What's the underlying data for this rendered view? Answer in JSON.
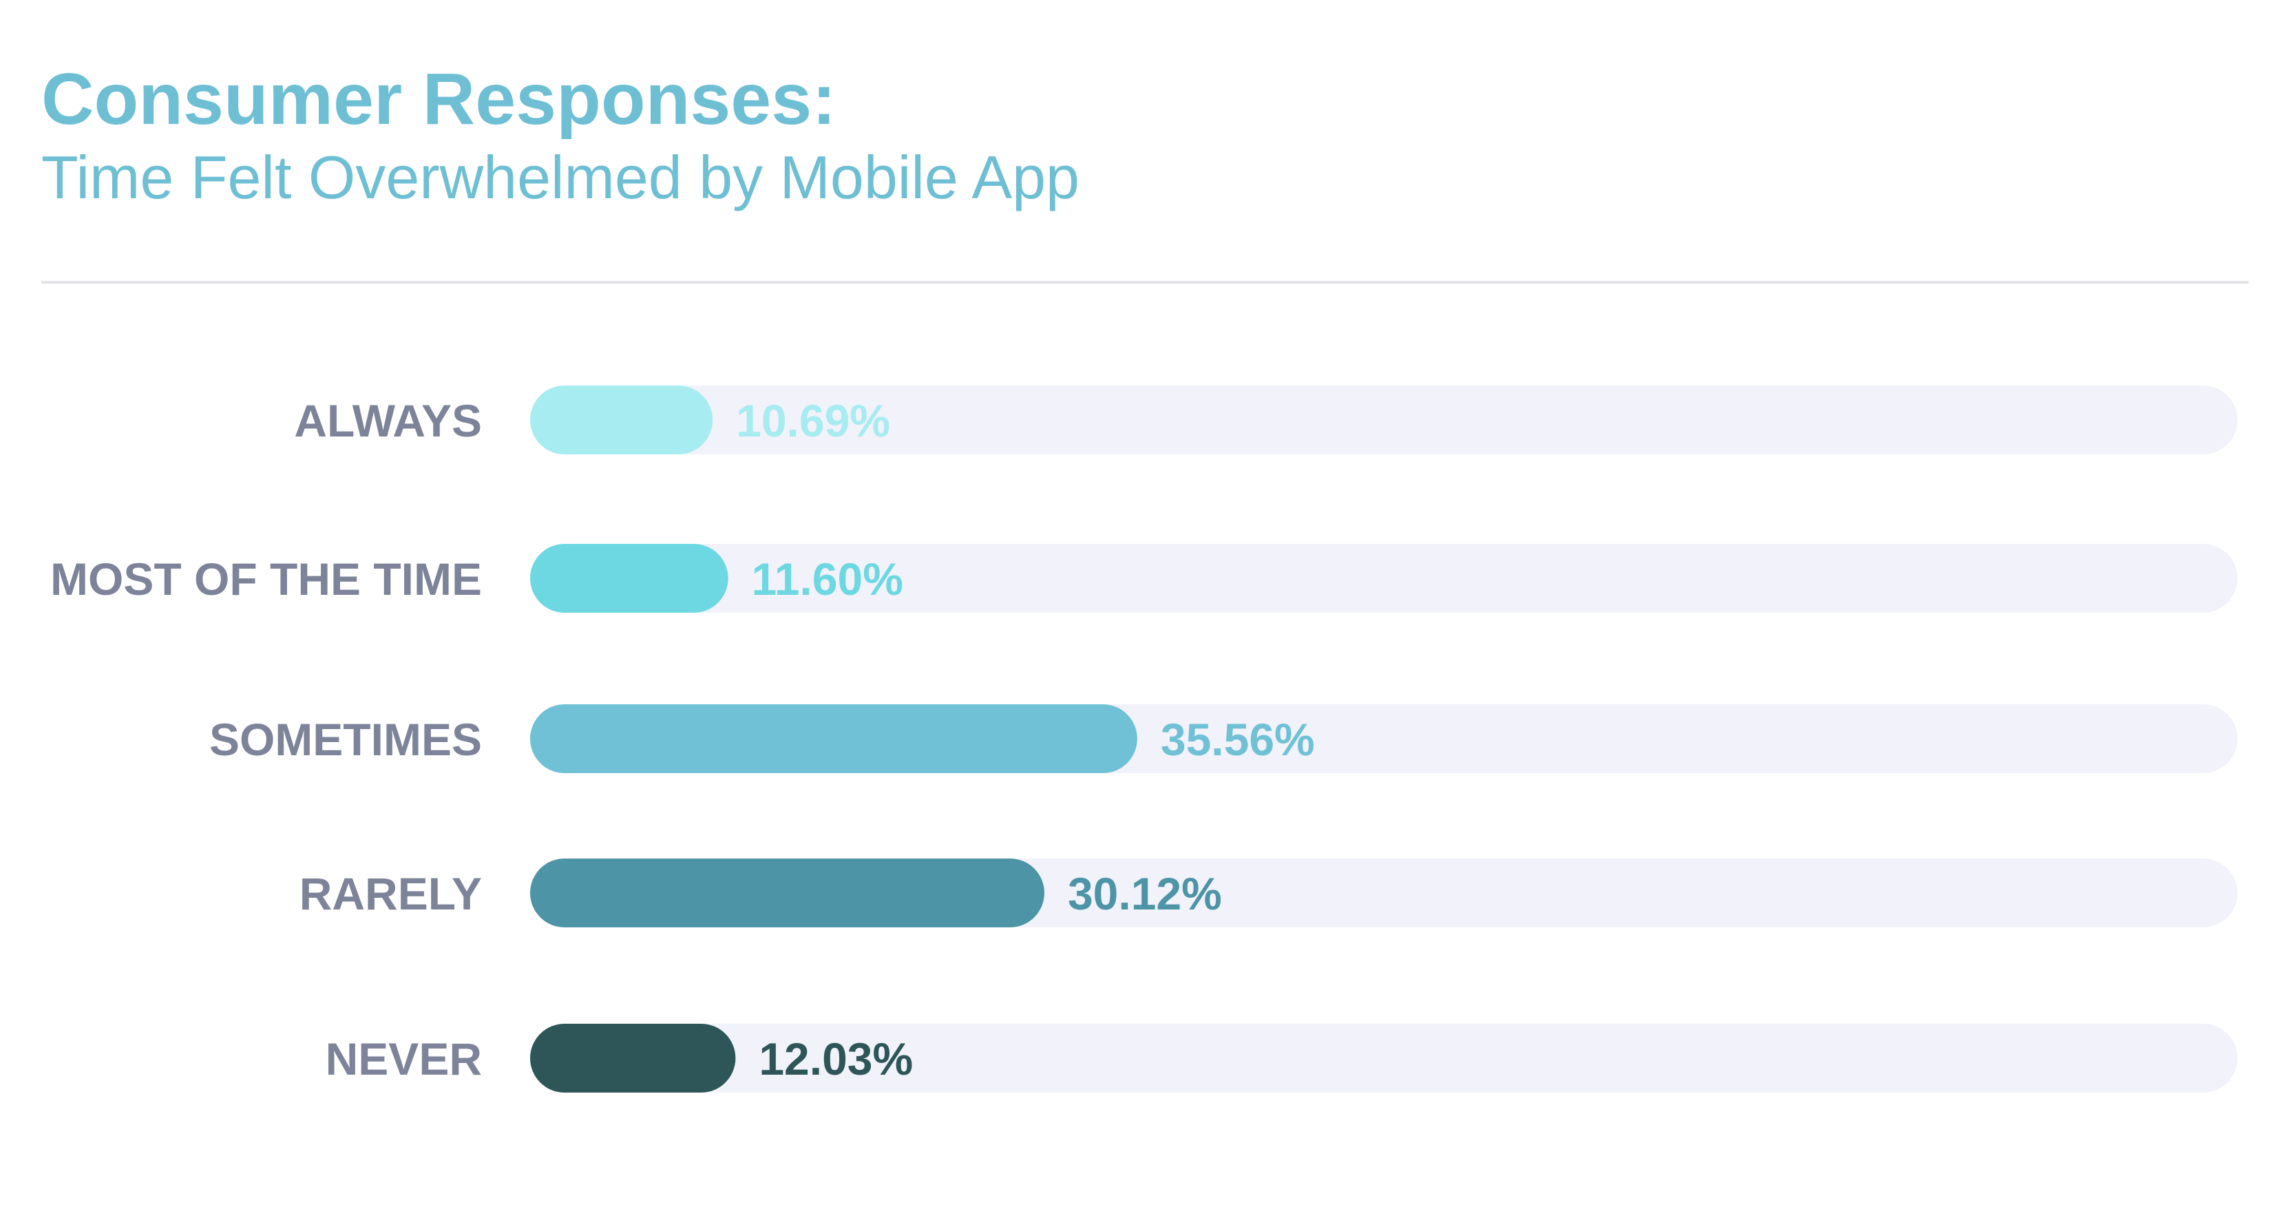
{
  "chart_data": {
    "type": "bar",
    "orientation": "horizontal",
    "title": "Consumer Responses:",
    "subtitle": "Time Felt Overwhelmed by Mobile App",
    "categories": [
      "ALWAYS",
      "MOST OF THE TIME",
      "SOMETIMES",
      "RARELY",
      "NEVER"
    ],
    "values": [
      10.69,
      11.6,
      35.56,
      30.12,
      12.03
    ],
    "value_labels": [
      "10.69%",
      "11.60%",
      "35.56%",
      "30.12%",
      "12.03%"
    ],
    "unit": "%",
    "xlim": [
      0,
      100
    ],
    "grid": false,
    "legend": "none",
    "colors": [
      "#a6ecf1",
      "#6dd8e2",
      "#70c1d6",
      "#4d94a6",
      "#2e5658"
    ],
    "track_color": "#f1f2fa",
    "label_color": "#7d8499"
  }
}
